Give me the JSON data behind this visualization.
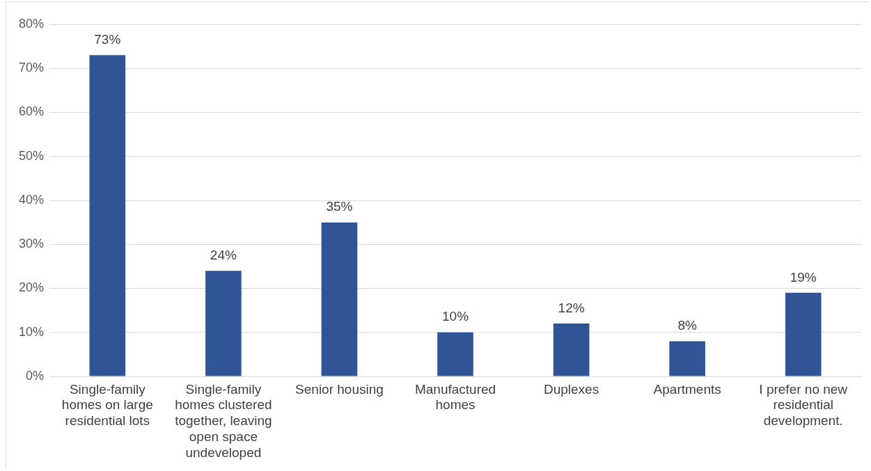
{
  "chart_data": {
    "type": "bar",
    "categories": [
      "Single-family homes on large residential lots",
      "Single-family homes clustered together, leaving open space undeveloped",
      "Senior housing",
      "Manufactured homes",
      "Duplexes",
      "Apartments",
      "I prefer no new residential development."
    ],
    "values": [
      73,
      24,
      35,
      10,
      12,
      8,
      19
    ],
    "value_labels": [
      "73%",
      "24%",
      "35%",
      "10%",
      "12%",
      "8%",
      "19%"
    ],
    "color": "#2f5597",
    "ylim": [
      0,
      80
    ],
    "yticks": [
      {
        "value": 0,
        "label": "0%"
      },
      {
        "value": 10,
        "label": "10%"
      },
      {
        "value": 20,
        "label": "20%"
      },
      {
        "value": 30,
        "label": "30%"
      },
      {
        "value": 40,
        "label": "40%"
      },
      {
        "value": 50,
        "label": "50%"
      },
      {
        "value": 60,
        "label": "60%"
      },
      {
        "value": 70,
        "label": "70%"
      },
      {
        "value": 80,
        "label": "80%"
      }
    ],
    "grid": "y",
    "legend": false
  }
}
